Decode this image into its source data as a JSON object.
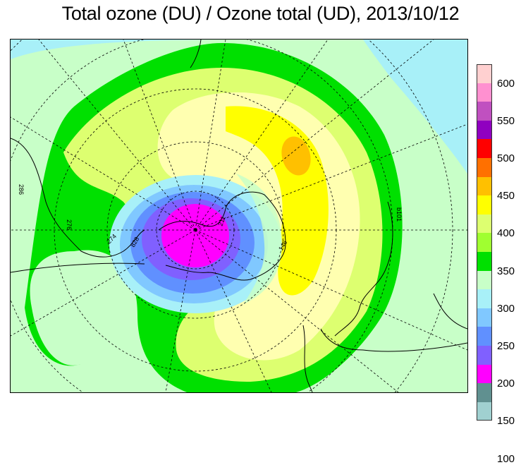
{
  "title": "Total ozone (DU) / Ozone total (UD), 2013/10/12",
  "legend": {
    "labels": [
      "600",
      "550",
      "500",
      "450",
      "400",
      "350",
      "300",
      "250",
      "200",
      "150",
      "100"
    ],
    "colors": [
      "#ffd0d0",
      "#ff90d0",
      "#c050c0",
      "#9000c0",
      "#ff0000",
      "#ff7000",
      "#ffc000",
      "#ffff00",
      "#ddff70",
      "#a0ff30",
      "#00e000",
      "#c8ffc8",
      "#a8f0f8",
      "#80c8ff",
      "#6090ff",
      "#8060ff",
      "#ff00ff",
      "#609090",
      "#a0d0d0"
    ]
  },
  "map_labels": [
    "b101",
    "286",
    "276",
    "274",
    "828",
    "211",
    "146"
  ]
}
